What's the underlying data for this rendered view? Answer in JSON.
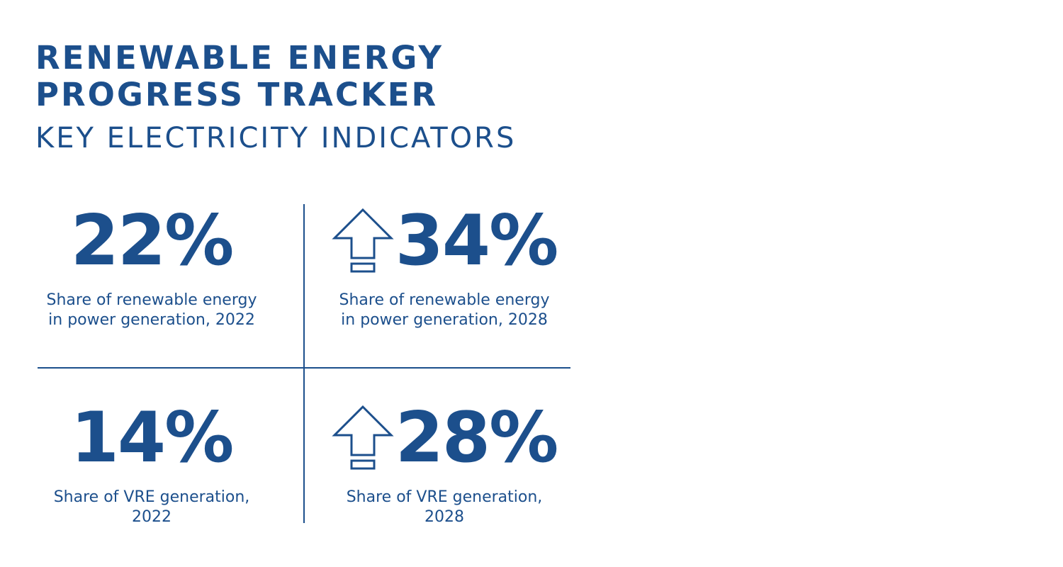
{
  "header": {
    "title_line1": "RENEWABLE ENERGY",
    "title_line2": "PROGRESS TRACKER",
    "subtitle": "KEY ELECTRICITY INDICATORS"
  },
  "indicators": [
    {
      "value": "22%",
      "label": "Share of renewable energy\nin power generation, 2022",
      "icon": null
    },
    {
      "value": "34%",
      "label": "Share of renewable energy\nin power generation, 2028",
      "icon": "up-arrow-icon"
    },
    {
      "value": "14%",
      "label": "Share of VRE generation,\n2022",
      "icon": null
    },
    {
      "value": "28%",
      "label": "Share of VRE generation,\n2028",
      "icon": "up-arrow-icon"
    }
  ],
  "colors": {
    "primary": "#1c4f8c",
    "background": "#ffffff"
  }
}
